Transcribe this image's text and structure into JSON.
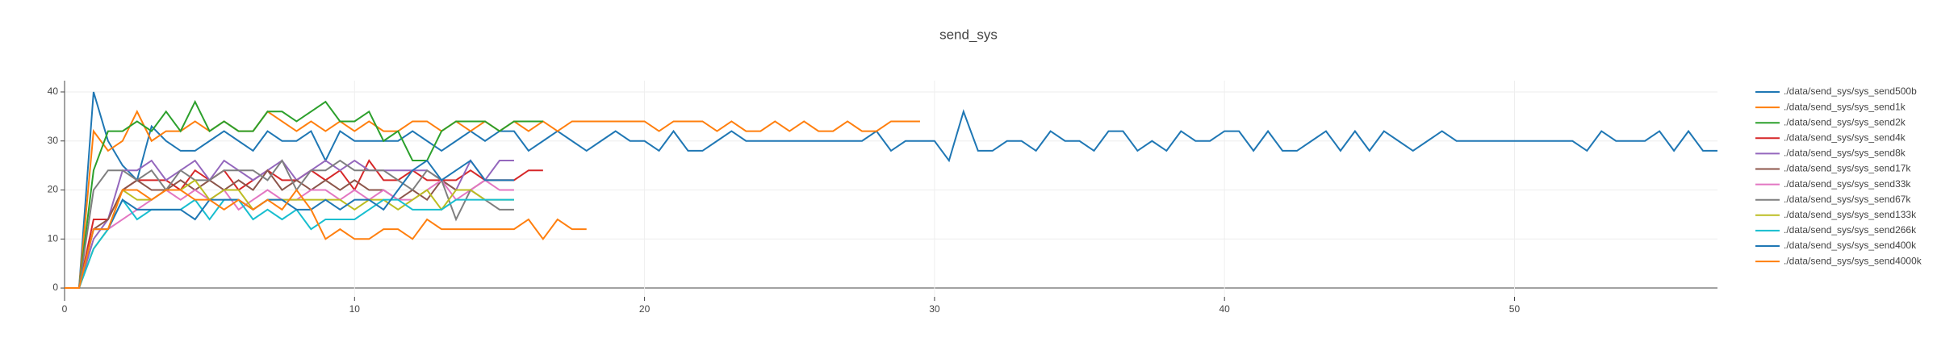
{
  "chart_data": {
    "type": "line",
    "title": "send_sys",
    "xlim": [
      0,
      57
    ],
    "ylim": [
      -1.8,
      42.3
    ],
    "xticks": [
      0,
      10,
      20,
      30,
      40,
      50
    ],
    "yticks": [
      0,
      10,
      20,
      30,
      40
    ],
    "grid": true,
    "series": [
      {
        "name": "./data/send_sys/sys_send500b",
        "color": "#1f77b4",
        "x": [
          0,
          0.5,
          1,
          1.5,
          2,
          2.5,
          3,
          3.5,
          4,
          4.5,
          5,
          5.5,
          6,
          6.5,
          7,
          7.5,
          8,
          8.5,
          9,
          9.5,
          10,
          10.5,
          11,
          11.5,
          12,
          12.5,
          13,
          13.5,
          14,
          14.5,
          15,
          15.5,
          16,
          16.5,
          17,
          17.5,
          18,
          18.5,
          19,
          19.5,
          20,
          20.5,
          21,
          21.5,
          22,
          22.5,
          23,
          23.5,
          24,
          24.5,
          25,
          25.5,
          26,
          26.5,
          27,
          27.5,
          28,
          28.5,
          29,
          29.5,
          30,
          30.5,
          31,
          31.5,
          32,
          32.5,
          33,
          33.5,
          34,
          34.5,
          35,
          35.5,
          36,
          36.5,
          37,
          37.5,
          38,
          38.5,
          39,
          39.5,
          40,
          40.5,
          41,
          41.5,
          42,
          42.5,
          43,
          43.5,
          44,
          44.5,
          45,
          45.5,
          46,
          46.5,
          47,
          47.5,
          48,
          48.5,
          49,
          49.5,
          50,
          50.5,
          51,
          51.5,
          52,
          52.5,
          53,
          53.5,
          54,
          54.5,
          55,
          55.5,
          56,
          56.5,
          57
        ],
        "values": [
          0,
          0,
          40,
          30,
          25,
          22,
          33,
          30,
          28,
          28,
          30,
          32,
          30,
          28,
          32,
          30,
          30,
          32,
          26,
          32,
          30,
          30,
          30,
          30,
          32,
          30,
          28,
          30,
          32,
          30,
          32,
          32,
          28,
          30,
          32,
          30,
          28,
          30,
          32,
          30,
          30,
          28,
          32,
          28,
          28,
          30,
          32,
          30,
          30,
          30,
          30,
          30,
          30,
          30,
          30,
          30,
          32,
          28,
          30,
          30,
          30,
          26,
          36,
          28,
          28,
          30,
          30,
          28,
          32,
          30,
          30,
          28,
          32,
          32,
          28,
          30,
          28,
          32,
          30,
          30,
          32,
          32,
          28,
          32,
          28,
          28,
          30,
          32,
          28,
          32,
          28,
          32,
          30,
          28,
          30,
          32,
          30,
          30,
          30,
          30,
          30,
          30,
          30,
          30,
          30,
          28,
          32,
          30,
          30,
          30,
          32,
          28,
          32,
          28,
          28
        ]
      },
      {
        "name": "./data/send_sys/sys_send1k",
        "color": "#ff7f0e",
        "x": [
          0,
          0.5,
          1,
          1.5,
          2,
          2.5,
          3,
          3.5,
          4,
          4.5,
          5,
          5.5,
          6,
          6.5,
          7,
          7.5,
          8,
          8.5,
          9,
          9.5,
          10,
          10.5,
          11,
          11.5,
          12,
          12.5,
          13,
          13.5,
          14,
          14.5,
          15,
          15.5,
          16,
          16.5,
          17,
          17.5,
          18,
          18.5,
          19,
          19.5,
          20,
          20.5,
          21,
          21.5,
          22,
          22.5,
          23,
          23.5,
          24,
          24.5,
          25,
          25.5,
          26,
          26.5,
          27,
          27.5,
          28,
          28.5,
          29,
          29.5
        ],
        "values": [
          0,
          0,
          32,
          28,
          30,
          36,
          30,
          32,
          32,
          34,
          32,
          34,
          32,
          32,
          36,
          34,
          32,
          34,
          32,
          34,
          32,
          34,
          32,
          32,
          34,
          34,
          32,
          34,
          32,
          34,
          32,
          34,
          32,
          34,
          32,
          34,
          34,
          34,
          34,
          34,
          34,
          32,
          34,
          34,
          34,
          32,
          34,
          32,
          32,
          34,
          32,
          34,
          32,
          32,
          34,
          32,
          32,
          34,
          34,
          34
        ]
      },
      {
        "name": "./data/send_sys/sys_send2k",
        "color": "#2ca02c",
        "x": [
          0,
          0.5,
          1,
          1.5,
          2,
          2.5,
          3,
          3.5,
          4,
          4.5,
          5,
          5.5,
          6,
          6.5,
          7,
          7.5,
          8,
          8.5,
          9,
          9.5,
          10,
          10.5,
          11,
          11.5,
          12,
          12.5,
          13,
          13.5,
          14,
          14.5,
          15,
          15.5,
          16,
          16.5
        ],
        "values": [
          0,
          0,
          24,
          32,
          32,
          34,
          32,
          36,
          32,
          38,
          32,
          34,
          32,
          32,
          36,
          36,
          34,
          36,
          38,
          34,
          34,
          36,
          30,
          32,
          26,
          26,
          32,
          34,
          34,
          34,
          32,
          34,
          34,
          34
        ]
      },
      {
        "name": "./data/send_sys/sys_send4k",
        "color": "#d62728",
        "x": [
          0,
          0.5,
          1,
          1.5,
          2,
          2.5,
          3,
          3.5,
          4,
          4.5,
          5,
          5.5,
          6,
          6.5,
          7,
          7.5,
          8,
          8.5,
          9,
          9.5,
          10,
          10.5,
          11,
          11.5,
          12,
          12.5,
          13,
          13.5,
          14,
          14.5,
          15,
          15.5,
          16,
          16.5
        ],
        "values": [
          0,
          0,
          14,
          14,
          20,
          22,
          22,
          22,
          20,
          24,
          22,
          24,
          20,
          22,
          24,
          22,
          22,
          24,
          22,
          24,
          20,
          26,
          22,
          22,
          24,
          22,
          22,
          22,
          24,
          22,
          22,
          22,
          24,
          24
        ]
      },
      {
        "name": "./data/send_sys/sys_send8k",
        "color": "#9467bd",
        "x": [
          0,
          0.5,
          1,
          1.5,
          2,
          2.5,
          3,
          3.5,
          4,
          4.5,
          5,
          5.5,
          6,
          6.5,
          7,
          7.5,
          8,
          8.5,
          9,
          9.5,
          10,
          10.5,
          11,
          11.5,
          12,
          12.5,
          13,
          13.5,
          14,
          14.5,
          15,
          15.5
        ],
        "values": [
          0,
          0,
          10,
          14,
          24,
          24,
          26,
          22,
          24,
          26,
          22,
          26,
          24,
          22,
          24,
          26,
          22,
          24,
          26,
          24,
          26,
          24,
          24,
          24,
          24,
          24,
          22,
          20,
          26,
          22,
          26,
          26
        ]
      },
      {
        "name": "./data/send_sys/sys_send17k",
        "color": "#8c564b",
        "x": [
          0,
          0.5,
          1,
          1.5,
          2,
          2.5,
          3,
          3.5,
          4,
          4.5,
          5,
          5.5,
          6,
          6.5,
          7,
          7.5,
          8,
          8.5,
          9,
          9.5,
          10,
          10.5,
          11,
          11.5,
          12,
          12.5,
          13,
          13.5,
          14,
          14.5,
          15,
          15.5
        ],
        "values": [
          0,
          0,
          12,
          14,
          20,
          22,
          20,
          20,
          22,
          20,
          22,
          20,
          22,
          20,
          24,
          20,
          22,
          20,
          22,
          20,
          22,
          20,
          20,
          18,
          20,
          18,
          22,
          20,
          20,
          22,
          22,
          22
        ]
      },
      {
        "name": "./data/send_sys/sys_send33k",
        "color": "#e377c2",
        "x": [
          0,
          0.5,
          1,
          1.5,
          2,
          2.5,
          3,
          3.5,
          4,
          4.5,
          5,
          5.5,
          6,
          6.5,
          7,
          7.5,
          8,
          8.5,
          9,
          9.5,
          10,
          10.5,
          11,
          11.5,
          12,
          12.5,
          13,
          13.5,
          14,
          14.5,
          15,
          15.5
        ],
        "values": [
          0,
          0,
          12,
          12,
          14,
          16,
          18,
          20,
          18,
          20,
          18,
          20,
          16,
          18,
          20,
          18,
          18,
          20,
          20,
          18,
          20,
          18,
          20,
          18,
          18,
          20,
          22,
          18,
          20,
          22,
          20,
          20
        ]
      },
      {
        "name": "./data/send_sys/sys_send67k",
        "color": "#7f7f7f",
        "x": [
          0,
          0.5,
          1,
          1.5,
          2,
          2.5,
          3,
          3.5,
          4,
          4.5,
          5,
          5.5,
          6,
          6.5,
          7,
          7.5,
          8,
          8.5,
          9,
          9.5,
          10,
          10.5,
          11,
          11.5,
          12,
          12.5,
          13,
          13.5,
          14,
          14.5,
          15,
          15.5
        ],
        "values": [
          0,
          0,
          20,
          24,
          24,
          22,
          24,
          20,
          24,
          22,
          22,
          24,
          24,
          24,
          22,
          26,
          20,
          24,
          24,
          26,
          24,
          24,
          24,
          22,
          20,
          24,
          22,
          14,
          20,
          18,
          16,
          16
        ]
      },
      {
        "name": "./data/send_sys/sys_send133k",
        "color": "#bcbd22",
        "x": [
          0,
          0.5,
          1,
          1.5,
          2,
          2.5,
          3,
          3.5,
          4,
          4.5,
          5,
          5.5,
          6,
          6.5,
          7,
          7.5,
          8,
          8.5,
          9,
          9.5,
          10,
          10.5,
          11,
          11.5,
          12,
          12.5,
          13,
          13.5,
          14,
          14.5,
          15,
          15.5
        ],
        "values": [
          0,
          0,
          8,
          12,
          20,
          18,
          18,
          20,
          20,
          22,
          18,
          20,
          20,
          16,
          18,
          18,
          18,
          18,
          18,
          18,
          16,
          18,
          18,
          16,
          18,
          20,
          16,
          20,
          20,
          18,
          18,
          18
        ]
      },
      {
        "name": "./data/send_sys/sys_send266k",
        "color": "#17becf",
        "x": [
          0,
          0.5,
          1,
          1.5,
          2,
          2.5,
          3,
          3.5,
          4,
          4.5,
          5,
          5.5,
          6,
          6.5,
          7,
          7.5,
          8,
          8.5,
          9,
          9.5,
          10,
          10.5,
          11,
          11.5,
          12,
          12.5,
          13,
          13.5,
          14,
          14.5,
          15,
          15.5
        ],
        "values": [
          0,
          0,
          8,
          12,
          18,
          14,
          16,
          16,
          16,
          18,
          14,
          18,
          18,
          14,
          16,
          14,
          16,
          12,
          14,
          14,
          14,
          16,
          18,
          18,
          16,
          16,
          16,
          18,
          18,
          18,
          18,
          18
        ]
      },
      {
        "name": "./data/send_sys/sys_send400k",
        "color": "#1f77b4",
        "x": [
          0,
          0.5,
          1,
          1.5,
          2,
          2.5,
          3,
          3.5,
          4,
          4.5,
          5,
          5.5,
          6,
          6.5,
          7,
          7.5,
          8,
          8.5,
          9,
          9.5,
          10,
          10.5,
          11,
          11.5,
          12,
          12.5,
          13,
          13.5,
          14,
          14.5,
          15,
          15.5
        ],
        "values": [
          0,
          0,
          12,
          12,
          18,
          16,
          16,
          16,
          16,
          14,
          18,
          18,
          18,
          16,
          18,
          18,
          16,
          16,
          18,
          16,
          18,
          18,
          16,
          20,
          24,
          26,
          22,
          24,
          26,
          22,
          22,
          22
        ]
      },
      {
        "name": "./data/send_sys/sys_send4000k",
        "color": "#ff7f0e",
        "x": [
          0,
          0.5,
          1,
          1.5,
          2,
          2.5,
          3,
          3.5,
          4,
          4.5,
          5,
          5.5,
          6,
          6.5,
          7,
          7.5,
          8,
          8.5,
          9,
          9.5,
          10,
          10.5,
          11,
          11.5,
          12,
          12.5,
          13,
          13.5,
          14,
          14.5,
          15,
          15.5,
          16,
          16.5,
          17,
          17.5,
          18
        ],
        "values": [
          0,
          0,
          12,
          12,
          20,
          20,
          18,
          20,
          20,
          18,
          18,
          16,
          18,
          16,
          18,
          16,
          20,
          16,
          10,
          12,
          10,
          10,
          12,
          12,
          10,
          14,
          12,
          12,
          12,
          12,
          12,
          12,
          14,
          10,
          14,
          12,
          12
        ]
      }
    ]
  }
}
